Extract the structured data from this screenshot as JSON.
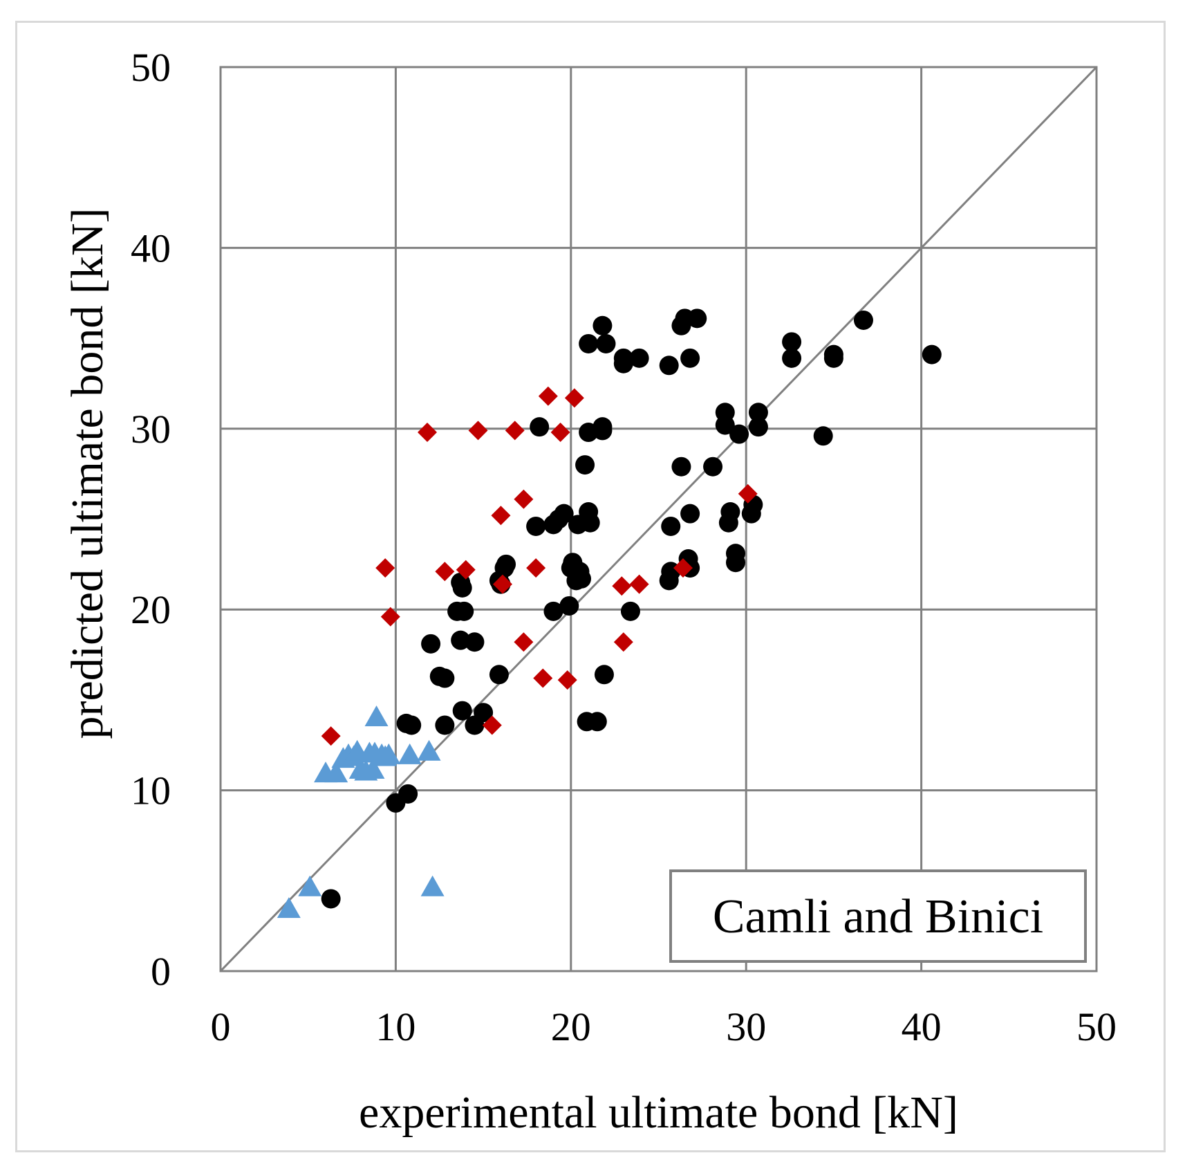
{
  "chart_data": {
    "type": "scatter",
    "title": "",
    "xlabel": "experimental ultimate bond [kN]",
    "ylabel": "predicted ultimate bond [kN]",
    "xlim": [
      0,
      50
    ],
    "ylim": [
      0,
      50
    ],
    "x_ticks": [
      "0",
      "10",
      "20",
      "30",
      "40",
      "50"
    ],
    "y_ticks": [
      "0",
      "10",
      "20",
      "30",
      "40",
      "50"
    ],
    "grid": true,
    "reference_line": {
      "from": [
        0,
        0
      ],
      "to": [
        50,
        50
      ],
      "color": "#808080"
    },
    "annotation": "Camli and Binici",
    "annotation_position": "bottom-right",
    "series": [
      {
        "name": "circles",
        "marker": "circle",
        "color": "#000000",
        "points": [
          [
            6.3,
            4.0
          ],
          [
            10.0,
            9.3
          ],
          [
            10.7,
            9.8
          ],
          [
            10.6,
            13.7
          ],
          [
            10.9,
            13.6
          ],
          [
            12.0,
            18.1
          ],
          [
            12.5,
            16.3
          ],
          [
            12.8,
            16.2
          ],
          [
            12.8,
            13.6
          ],
          [
            13.5,
            19.9
          ],
          [
            13.9,
            19.9
          ],
          [
            13.7,
            21.5
          ],
          [
            13.8,
            21.2
          ],
          [
            13.7,
            18.3
          ],
          [
            14.5,
            18.2
          ],
          [
            13.8,
            14.4
          ],
          [
            14.5,
            13.6
          ],
          [
            15.0,
            14.3
          ],
          [
            15.9,
            21.6
          ],
          [
            16.0,
            21.4
          ],
          [
            16.2,
            22.3
          ],
          [
            16.3,
            22.5
          ],
          [
            15.9,
            16.4
          ],
          [
            18.0,
            24.6
          ],
          [
            18.2,
            30.1
          ],
          [
            19.0,
            19.9
          ],
          [
            19.0,
            24.7
          ],
          [
            19.3,
            25.0
          ],
          [
            19.6,
            25.3
          ],
          [
            19.9,
            20.2
          ],
          [
            20.0,
            22.3
          ],
          [
            20.1,
            22.6
          ],
          [
            20.3,
            21.6
          ],
          [
            20.5,
            22.1
          ],
          [
            20.4,
            24.7
          ],
          [
            20.6,
            21.7
          ],
          [
            20.8,
            28.0
          ],
          [
            20.9,
            13.8
          ],
          [
            21.0,
            29.8
          ],
          [
            21.0,
            25.4
          ],
          [
            21.1,
            24.8
          ],
          [
            21.5,
            13.8
          ],
          [
            21.9,
            16.4
          ],
          [
            21.8,
            29.9
          ],
          [
            21.8,
            30.1
          ],
          [
            21.0,
            34.7
          ],
          [
            22.0,
            34.7
          ],
          [
            21.8,
            35.7
          ],
          [
            23.0,
            33.6
          ],
          [
            23.4,
            19.9
          ],
          [
            23.0,
            33.9
          ],
          [
            23.9,
            33.9
          ],
          [
            25.6,
            33.5
          ],
          [
            25.7,
            24.6
          ],
          [
            25.7,
            22.1
          ],
          [
            25.6,
            21.6
          ],
          [
            26.3,
            35.7
          ],
          [
            26.5,
            36.1
          ],
          [
            27.2,
            36.1
          ],
          [
            26.3,
            27.9
          ],
          [
            26.8,
            33.9
          ],
          [
            26.8,
            25.3
          ],
          [
            26.8,
            22.3
          ],
          [
            26.7,
            22.8
          ],
          [
            28.1,
            27.9
          ],
          [
            28.8,
            30.9
          ],
          [
            28.8,
            30.2
          ],
          [
            29.0,
            24.8
          ],
          [
            29.1,
            25.4
          ],
          [
            29.4,
            23.1
          ],
          [
            29.4,
            22.6
          ],
          [
            29.6,
            29.7
          ],
          [
            30.3,
            25.3
          ],
          [
            30.4,
            25.8
          ],
          [
            30.7,
            30.1
          ],
          [
            30.7,
            30.9
          ],
          [
            32.6,
            34.8
          ],
          [
            32.6,
            33.9
          ],
          [
            34.4,
            29.6
          ],
          [
            35.0,
            33.9
          ],
          [
            35.0,
            34.1
          ],
          [
            36.7,
            36.0
          ],
          [
            40.6,
            34.1
          ]
        ]
      },
      {
        "name": "diamonds",
        "marker": "diamond",
        "color": "#c00000",
        "points": [
          [
            6.3,
            13.0
          ],
          [
            9.4,
            22.3
          ],
          [
            9.7,
            19.6
          ],
          [
            11.8,
            29.8
          ],
          [
            12.8,
            22.1
          ],
          [
            14.0,
            22.2
          ],
          [
            14.7,
            29.9
          ],
          [
            15.5,
            13.6
          ],
          [
            16.0,
            25.2
          ],
          [
            16.1,
            21.4
          ],
          [
            16.8,
            29.9
          ],
          [
            17.3,
            26.1
          ],
          [
            17.3,
            18.2
          ],
          [
            18.0,
            22.3
          ],
          [
            18.4,
            16.2
          ],
          [
            18.7,
            31.8
          ],
          [
            19.4,
            29.8
          ],
          [
            19.8,
            16.1
          ],
          [
            20.2,
            31.7
          ],
          [
            22.9,
            21.3
          ],
          [
            23.0,
            18.2
          ],
          [
            23.9,
            21.4
          ],
          [
            26.4,
            22.3
          ],
          [
            30.1,
            26.4
          ]
        ]
      },
      {
        "name": "triangles",
        "marker": "triangle",
        "color": "#5b9bd5",
        "points": [
          [
            3.9,
            3.4
          ],
          [
            5.1,
            4.6
          ],
          [
            6.0,
            10.9
          ],
          [
            6.6,
            10.9
          ],
          [
            7.0,
            11.7
          ],
          [
            7.3,
            11.9
          ],
          [
            7.6,
            11.8
          ],
          [
            7.8,
            12.1
          ],
          [
            8.0,
            11.1
          ],
          [
            8.3,
            11.0
          ],
          [
            8.5,
            12.0
          ],
          [
            8.7,
            11.1
          ],
          [
            8.8,
            12.0
          ],
          [
            8.9,
            14.0
          ],
          [
            9.2,
            11.9
          ],
          [
            9.4,
            11.8
          ],
          [
            9.6,
            11.9
          ],
          [
            10.8,
            11.9
          ],
          [
            11.9,
            12.1
          ],
          [
            12.1,
            4.6
          ]
        ]
      }
    ]
  }
}
